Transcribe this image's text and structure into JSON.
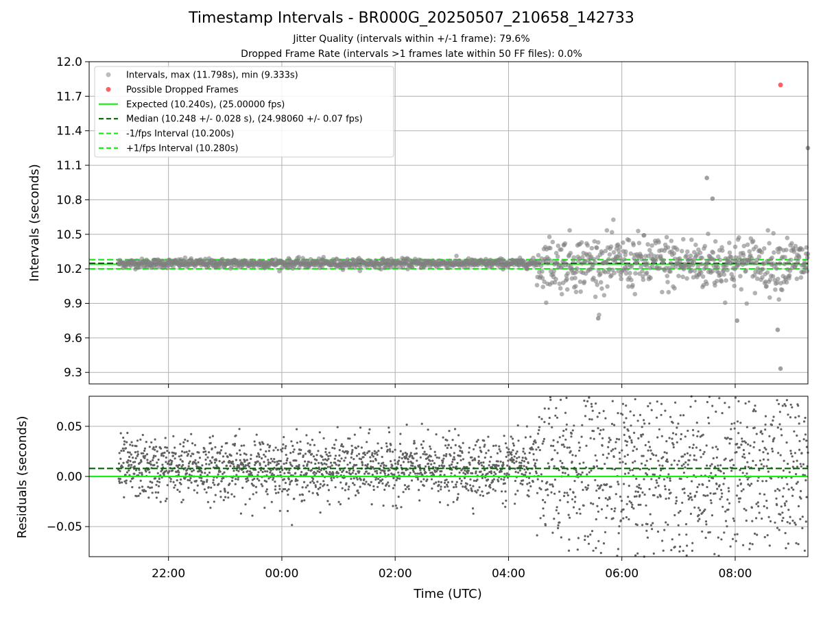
{
  "figure": {
    "title": "Timestamp Intervals - BR000G_20250507_210658_142733",
    "subtitle_1": "Jitter Quality (intervals within +/-1 frame): 79.6%",
    "subtitle_2": "Dropped Frame Rate (intervals >1 frames late within 50 FF files): 0.0%"
  },
  "colors": {
    "intervals": "#808080",
    "dropped": "#ff5050",
    "expected": "#14f014",
    "median": "#006400",
    "fps_band": "#14f014",
    "residual_points": "#606060"
  },
  "chart_data": [
    {
      "type": "scatter",
      "ylabel": "Intervals (seconds)",
      "xlim": [
        "20:36",
        "09:17"
      ],
      "ylim": [
        9.2,
        12.0
      ],
      "yticks": [
        "9.3",
        "9.6",
        "9.9",
        "10.2",
        "10.5",
        "10.8",
        "11.1",
        "11.4",
        "11.7",
        "12.0"
      ],
      "xticks": [
        "22:00",
        "00:00",
        "02:00",
        "04:00",
        "06:00",
        "08:00"
      ],
      "grid": true,
      "legend_placement": "top-left",
      "legend": [
        {
          "label": "Intervals, max (11.798s), min (9.333s)",
          "kind": "marker",
          "color": "#a0a0a0"
        },
        {
          "label": "Possible Dropped Frames",
          "kind": "marker",
          "color": "#ff5050"
        },
        {
          "label": "Expected (10.240s), (25.00000 fps)",
          "kind": "solid",
          "color": "#14f014"
        },
        {
          "label": "Median (10.248 +/- 0.028 s), (24.98060 +/- 0.07 fps)",
          "kind": "dashed",
          "color": "#006400"
        },
        {
          "label": "-1/fps Interval (10.200s)",
          "kind": "dashed",
          "color": "#14f014"
        },
        {
          "label": "+1/fps Interval (10.280s)",
          "kind": "dashed",
          "color": "#14f014"
        }
      ],
      "lines": {
        "expected": 10.24,
        "median": 10.248,
        "minus_fps": 10.2,
        "plus_fps": 10.28
      },
      "series": [
        {
          "name": "Intervals",
          "x_start": "21:07",
          "x_end": "09:17",
          "center": 10.248,
          "spread_before_0430": 0.028,
          "spread_after_0430": 0.12,
          "notable_points": [
            {
              "x": "07:30",
              "y": 10.99
            },
            {
              "x": "07:36",
              "y": 10.81
            },
            {
              "x": "08:45",
              "y": 9.67
            },
            {
              "x": "08:48",
              "y": 9.333
            },
            {
              "x": "09:17",
              "y": 11.25
            },
            {
              "x": "08:02",
              "y": 9.75
            },
            {
              "x": "05:35",
              "y": 9.77
            }
          ]
        },
        {
          "name": "Possible Dropped Frames",
          "points": [
            {
              "x": "08:48",
              "y": 11.798
            }
          ]
        }
      ]
    },
    {
      "type": "scatter",
      "xlabel": "Time (UTC)",
      "ylabel": "Residuals (seconds)",
      "xlim": [
        "20:36",
        "09:17"
      ],
      "ylim": [
        -0.08,
        0.08
      ],
      "yticks": [
        "−0.05",
        "0.00",
        "0.05"
      ],
      "xticks": [
        "22:00",
        "00:00",
        "02:00",
        "04:00",
        "06:00",
        "08:00"
      ],
      "grid": true,
      "lines": {
        "expected": 0.0,
        "median": 0.008
      },
      "series": [
        {
          "name": "Residuals",
          "x_start": "21:07",
          "x_end": "09:17",
          "center": 0.008,
          "spread_before_0430": 0.015,
          "spread_after_0430": 0.05
        }
      ]
    }
  ]
}
